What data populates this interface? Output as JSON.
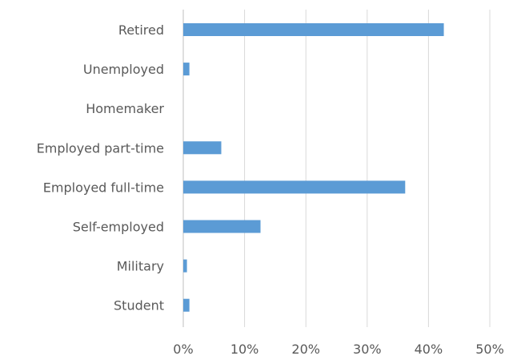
{
  "chart_data": {
    "type": "bar",
    "orientation": "horizontal",
    "categories": [
      "Retired",
      "Unemployed",
      "Homemaker",
      "Employed part-time",
      "Employed full-time",
      "Self-employed",
      "Military",
      "Student"
    ],
    "values": [
      42.5,
      1.0,
      0,
      6.2,
      36.2,
      12.6,
      0.6,
      1.0
    ],
    "value_unit": "%",
    "xlim": [
      0,
      50
    ],
    "x_ticks": [
      "0%",
      "10%",
      "20%",
      "30%",
      "40%",
      "50%"
    ],
    "title": "",
    "xlabel": "",
    "ylabel": "",
    "grid": "vertical",
    "legend": "none",
    "bar_color": "#5b9bd5",
    "grid_color": "#d9d9d9"
  }
}
